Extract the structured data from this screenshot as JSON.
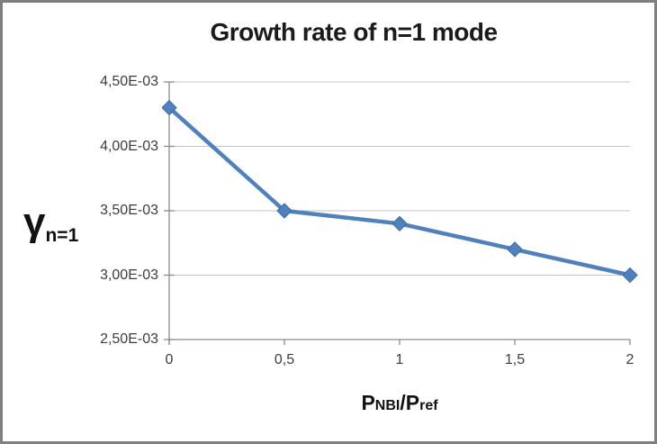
{
  "frame": {
    "border_color": "#7F7F7F",
    "background": "#FFFFFF"
  },
  "chart_data": {
    "type": "line",
    "title": "Growth rate of n=1 mode",
    "x": [
      0,
      0.5,
      1,
      1.5,
      2
    ],
    "y": [
      0.0043,
      0.0035,
      0.0034,
      0.0032,
      0.003
    ],
    "x_ticks": [
      0,
      0.5,
      1,
      1.5,
      2
    ],
    "x_tick_labels": [
      "0",
      "0,5",
      "1",
      "1,5",
      "2"
    ],
    "y_ticks": [
      0.0045,
      0.004,
      0.0035,
      0.003,
      0.0025
    ],
    "y_tick_labels": [
      "4,50E-03",
      "4,00E-03",
      "3,50E-03",
      "3,00E-03",
      "2,50E-03"
    ],
    "xlim": [
      0,
      2
    ],
    "ylim": [
      0.0025,
      0.0045
    ],
    "ylabel": {
      "symbol": "γ",
      "subscript": "n=1"
    },
    "xlabel": {
      "p1": "P",
      "sub1": "NBI",
      "p2": "/P",
      "sub2": "ref"
    },
    "grid": "horizontal",
    "legend": "none",
    "series_count": 1,
    "line_color": "#4F81BD",
    "marker_color": "#4F81BD",
    "marker_outline_color": "#3A6BA5",
    "marker_shape": "diamond",
    "axis_color": "#8C8C8C",
    "gridline_color": "#C3C3C3",
    "tick_label_color": "#3D3D3D",
    "title_color": "#1B1B1B",
    "decimal_separator": ","
  }
}
